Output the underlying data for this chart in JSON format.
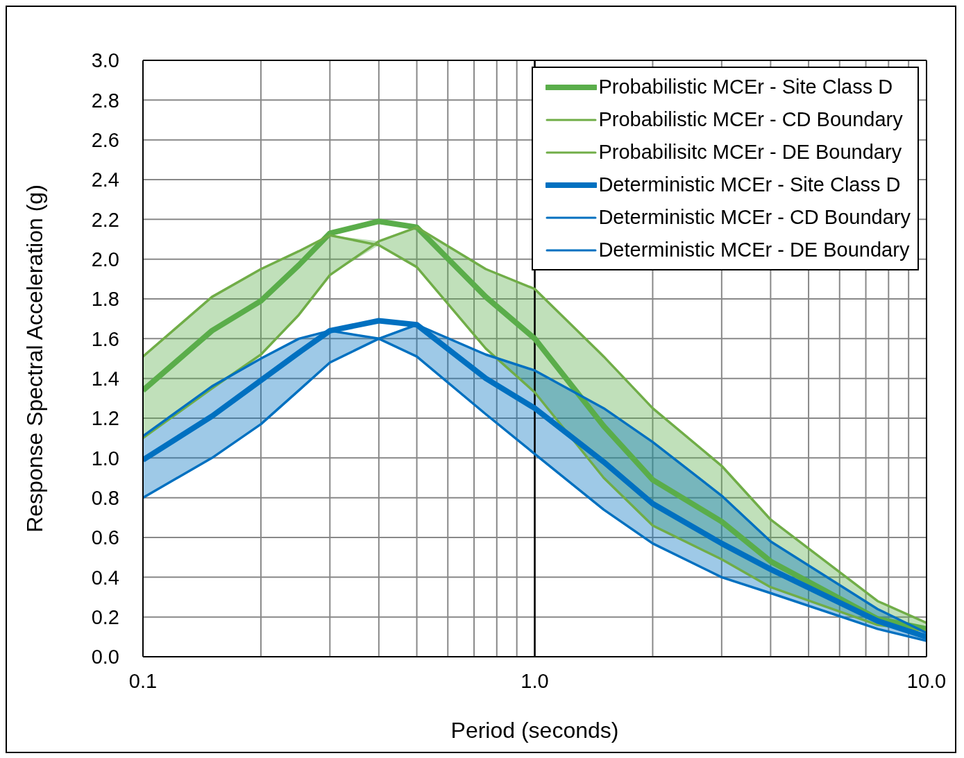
{
  "chart_data": {
    "type": "line",
    "xlabel": "Period (seconds)",
    "ylabel": "Response Spectral Acceleration (g)",
    "log": "x",
    "grid": true,
    "legend": "top right",
    "marker": "none",
    "line_style": "solid",
    "x": [
      0.1,
      0.15,
      0.2,
      0.25,
      0.3,
      0.4,
      0.5,
      0.75,
      1,
      1.5,
      2,
      3,
      4,
      7.5,
      10
    ],
    "xlim": [
      0.1,
      10
    ],
    "xticks": [
      {
        "value": 0.1,
        "label": "0.1"
      },
      {
        "value": 0.2,
        "label": null
      },
      {
        "value": 0.3,
        "label": null
      },
      {
        "value": 0.4,
        "label": null
      },
      {
        "value": 0.5,
        "label": null
      },
      {
        "value": 0.6,
        "label": null
      },
      {
        "value": 0.7,
        "label": null
      },
      {
        "value": 0.8,
        "label": null
      },
      {
        "value": 0.9,
        "label": null
      },
      {
        "value": 1,
        "label": "1.0"
      },
      {
        "value": 2,
        "label": null
      },
      {
        "value": 3,
        "label": null
      },
      {
        "value": 4,
        "label": null
      },
      {
        "value": 5,
        "label": null
      },
      {
        "value": 6,
        "label": null
      },
      {
        "value": 7,
        "label": null
      },
      {
        "value": 8,
        "label": null
      },
      {
        "value": 9,
        "label": null
      },
      {
        "value": 10,
        "label": "10.0"
      }
    ],
    "ylim": [
      0,
      3
    ],
    "yticks": [
      {
        "value": 0,
        "label": "0.0"
      },
      0.2,
      0.4,
      0.6,
      0.8,
      {
        "value": 1,
        "label": "1.0"
      },
      1.2,
      1.4,
      1.6,
      1.8,
      {
        "value": 2,
        "label": "2.0"
      },
      2.2,
      2.4,
      2.6,
      2.8,
      {
        "value": 3,
        "label": "3.0"
      }
    ],
    "ref_lines": [
      {
        "axis": "x",
        "value": 1,
        "color": "#000000"
      }
    ],
    "series": [
      {
        "name": "Probabilistic MCEr - Site Class D",
        "color": "#5aad4a",
        "values": [
          1.34,
          1.64,
          1.79,
          1.97,
          2.13,
          2.19,
          2.16,
          1.81,
          1.6,
          1.16,
          0.89,
          0.68,
          0.48,
          0.19,
          0.14
        ],
        "lower": [
          1.1,
          1.35,
          1.52,
          1.72,
          1.92,
          2.07,
          1.96,
          1.55,
          1.33,
          0.9,
          0.66,
          0.49,
          0.35,
          0.16,
          0.13
        ],
        "upper": [
          1.51,
          1.81,
          1.95,
          2.04,
          2.12,
          2.09,
          2.16,
          1.95,
          1.85,
          1.51,
          1.25,
          0.96,
          0.69,
          0.28,
          0.17
        ]
      },
      {
        "name": "Probabilistic MCEr - CD Boundary",
        "color": "#70ad47",
        "values": [
          1.51,
          1.81,
          1.95,
          2.04,
          2.12,
          2.07,
          1.96,
          1.55,
          1.33,
          0.9,
          0.66,
          0.49,
          0.35,
          0.16,
          0.13
        ]
      },
      {
        "name": "Probabilisitc MCEr - DE Boundary",
        "color": "#70ad47",
        "values": [
          1.1,
          1.35,
          1.52,
          1.72,
          1.92,
          2.09,
          2.16,
          1.95,
          1.85,
          1.51,
          1.25,
          0.96,
          0.69,
          0.28,
          0.17
        ]
      },
      {
        "name": "Deterministic MCEr - Site Class D",
        "color": "#0070c0",
        "values": [
          0.99,
          1.21,
          1.39,
          1.53,
          1.64,
          1.69,
          1.67,
          1.4,
          1.25,
          0.98,
          0.77,
          0.57,
          0.44,
          0.18,
          0.1
        ],
        "lower": [
          0.8,
          1.0,
          1.17,
          1.34,
          1.48,
          1.6,
          1.51,
          1.22,
          1.02,
          0.74,
          0.57,
          0.4,
          0.32,
          0.14,
          0.08
        ],
        "upper": [
          1.11,
          1.36,
          1.5,
          1.6,
          1.64,
          1.6,
          1.67,
          1.52,
          1.44,
          1.25,
          1.08,
          0.81,
          0.58,
          0.24,
          0.12
        ]
      },
      {
        "name": "Deterministic MCEr - CD Boundary",
        "color": "#0070c0",
        "values": [
          1.11,
          1.36,
          1.5,
          1.6,
          1.64,
          1.6,
          1.51,
          1.22,
          1.02,
          0.74,
          0.57,
          0.4,
          0.32,
          0.14,
          0.08
        ]
      },
      {
        "name": "Deterministic MCEr - DE Boundary",
        "color": "#0070c0",
        "values": [
          0.8,
          1.0,
          1.17,
          1.34,
          1.48,
          1.6,
          1.67,
          1.52,
          1.44,
          1.25,
          1.08,
          0.81,
          0.58,
          0.24,
          0.12
        ]
      }
    ]
  }
}
